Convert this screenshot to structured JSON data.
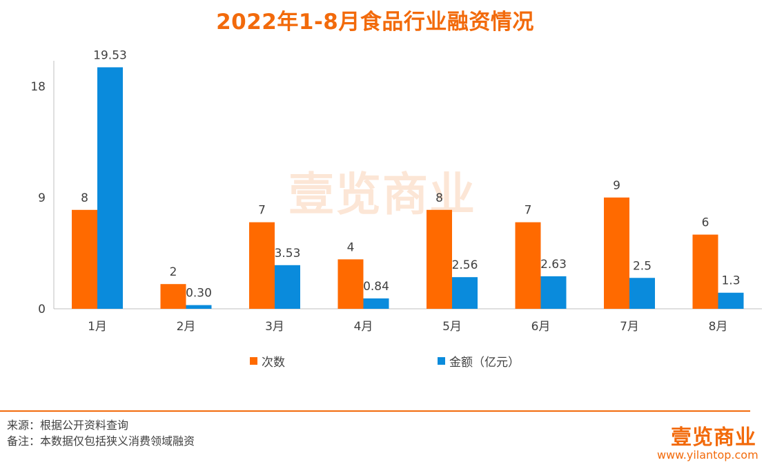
{
  "header": {
    "title": "2022年1-8月食品行业融资情况"
  },
  "chart_data": {
    "type": "bar",
    "categories": [
      "1月",
      "2月",
      "3月",
      "4月",
      "5月",
      "6月",
      "7月",
      "8月"
    ],
    "series": [
      {
        "name": "次数",
        "values": [
          8,
          2,
          7,
          4,
          8,
          7,
          9,
          6
        ],
        "labels": [
          "8",
          "2",
          "7",
          "4",
          "8",
          "7",
          "9",
          "6"
        ],
        "color": "#ff6a00"
      },
      {
        "name": "金额（亿元）",
        "values": [
          19.53,
          0.3,
          3.53,
          0.84,
          2.56,
          2.63,
          2.5,
          1.3
        ],
        "labels": [
          "19.53",
          "0.30",
          "3.53",
          "0.84",
          "2.56",
          "2.63",
          "2.5",
          "1.3"
        ],
        "color": "#0a8bdc"
      }
    ],
    "yticks": [
      0,
      9,
      18
    ],
    "ylim": [
      0,
      20
    ],
    "legend_position": "bottom",
    "grid": false
  },
  "footer": {
    "source": "来源：根据公开资料查询",
    "note": "备注：本数据仅包括狭义消费领域融资"
  },
  "branding": {
    "watermark": "壹览商业",
    "logo": "壹览商业",
    "url": "www.yilantop.com"
  }
}
